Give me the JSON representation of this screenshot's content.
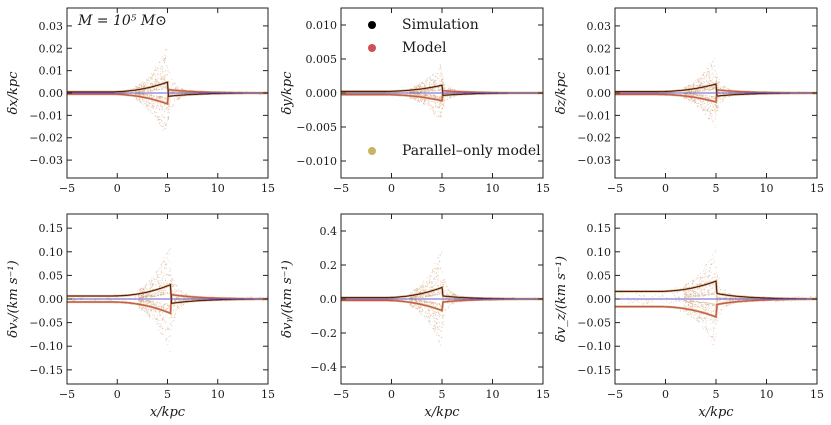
{
  "figure": {
    "annotation": "M = 10⁵ M⊙",
    "legend": {
      "entries": [
        {
          "label": "Simulation",
          "color": "#000000"
        },
        {
          "label": "Model",
          "color": "#d0505a"
        },
        {
          "label": "Parallel–only model",
          "color": "#c8b464"
        }
      ]
    },
    "colors": {
      "simulation": "#000000",
      "model": "#d0505a",
      "parallel_model": "#c8b464",
      "scatter_simulation": "#c8966e",
      "scatter_model": "#e6a4a0",
      "scatter_parallel": "#d2be82",
      "reference_line": "#6a5acd"
    }
  },
  "chart_data": [
    {
      "type": "scatter",
      "panel": "top-left",
      "ylabel": "δx/kpc",
      "xlabel": "",
      "xlim": [
        -5,
        15
      ],
      "ylim": [
        -0.038,
        0.038
      ],
      "xticks": [
        "−5",
        "0",
        "5",
        "10",
        "15"
      ],
      "yticks": [
        "−0.03",
        "−0.02",
        "−0.01",
        "0.00",
        "0.01",
        "0.02",
        "0.03"
      ],
      "ytick_values": [
        -0.03,
        -0.02,
        -0.01,
        0.0,
        0.01,
        0.02,
        0.03
      ],
      "shape": {
        "peak_x": 5.0,
        "upper_max": 0.022,
        "lower_min": -0.022,
        "tail_sign": -1,
        "pre_amp": 0.0006,
        "post_amp": 0.0013
      }
    },
    {
      "type": "scatter",
      "panel": "top-middle",
      "ylabel": "δy/kpc",
      "xlabel": "",
      "xlim": [
        -5,
        15
      ],
      "ylim": [
        -0.0125,
        0.0125
      ],
      "xticks": [
        "−5",
        "0",
        "5",
        "10",
        "15"
      ],
      "yticks": [
        "−0.010",
        "−0.005",
        "0.000",
        "0.005",
        "0.010"
      ],
      "ytick_values": [
        -0.01,
        -0.005,
        0.0,
        0.005,
        0.01
      ],
      "shape": {
        "peak_x": 5.0,
        "upper_max": 0.0045,
        "lower_min": -0.0035,
        "tail_sign": -1,
        "pre_amp": 0.0003,
        "post_amp": 0.0003
      }
    },
    {
      "type": "scatter",
      "panel": "top-right",
      "ylabel": "δz/kpc",
      "xlabel": "",
      "xlim": [
        -5,
        15
      ],
      "ylim": [
        -0.038,
        0.038
      ],
      "xticks": [
        "−5",
        "0",
        "5",
        "10",
        "15"
      ],
      "yticks": [
        "−0.03",
        "−0.02",
        "−0.01",
        "0.00",
        "0.01",
        "0.02",
        "0.03"
      ],
      "ytick_values": [
        -0.03,
        -0.02,
        -0.01,
        0.0,
        0.01,
        0.02,
        0.03
      ],
      "shape": {
        "peak_x": 5.0,
        "upper_max": 0.017,
        "lower_min": -0.017,
        "tail_sign": -1,
        "pre_amp": 0.0008,
        "post_amp": 0.0012
      }
    },
    {
      "type": "scatter",
      "panel": "bottom-left",
      "ylabel": "δvₓ/(km s⁻¹)",
      "xlabel": "x/kpc",
      "xlim": [
        -5,
        15
      ],
      "ylim": [
        -0.18,
        0.18
      ],
      "xticks": [
        "−5",
        "0",
        "5",
        "10",
        "15"
      ],
      "yticks": [
        "−0.15",
        "−0.10",
        "−0.05",
        "0.00",
        "0.05",
        "0.10",
        "0.15"
      ],
      "ytick_values": [
        -0.15,
        -0.1,
        -0.05,
        0.0,
        0.05,
        0.1,
        0.15
      ],
      "shape": {
        "peak_x": 5.3,
        "upper_max": 0.12,
        "lower_min": -0.13,
        "tail_sign": -1,
        "pre_amp": 0.008,
        "post_amp": 0.008
      }
    },
    {
      "type": "scatter",
      "panel": "bottom-middle",
      "ylabel": "δvᵧ/(km s⁻¹)",
      "xlabel": "x/kpc",
      "xlim": [
        -5,
        15
      ],
      "ylim": [
        -0.5,
        0.5
      ],
      "xticks": [
        "−5",
        "0",
        "5",
        "10",
        "15"
      ],
      "yticks": [
        "−0.4",
        "−0.2",
        "0.0",
        "0.2",
        "0.4"
      ],
      "ytick_values": [
        -0.4,
        -0.2,
        0.0,
        0.2,
        0.4
      ],
      "shape": {
        "peak_x": 5.0,
        "upper_max": 0.3,
        "lower_min": -0.3,
        "tail_sign": 1,
        "pre_amp": 0.01,
        "post_amp": 0.015
      }
    },
    {
      "type": "scatter",
      "panel": "bottom-right",
      "ylabel": "δv_z/(km s⁻¹)",
      "xlabel": "x/kpc",
      "xlim": [
        -5,
        15
      ],
      "ylim": [
        -0.18,
        0.18
      ],
      "xticks": [
        "−5",
        "0",
        "5",
        "10",
        "15"
      ],
      "yticks": [
        "−0.15",
        "−0.10",
        "−0.05",
        "0.00",
        "0.05",
        "0.10",
        "0.15"
      ],
      "ytick_values": [
        -0.15,
        -0.1,
        -0.05,
        0.0,
        0.05,
        0.1,
        0.15
      ],
      "shape": {
        "peak_x": 5.0,
        "upper_max": 0.11,
        "lower_min": -0.12,
        "tail_sign": 1,
        "pre_amp": 0.02,
        "post_amp": 0.01
      }
    }
  ]
}
